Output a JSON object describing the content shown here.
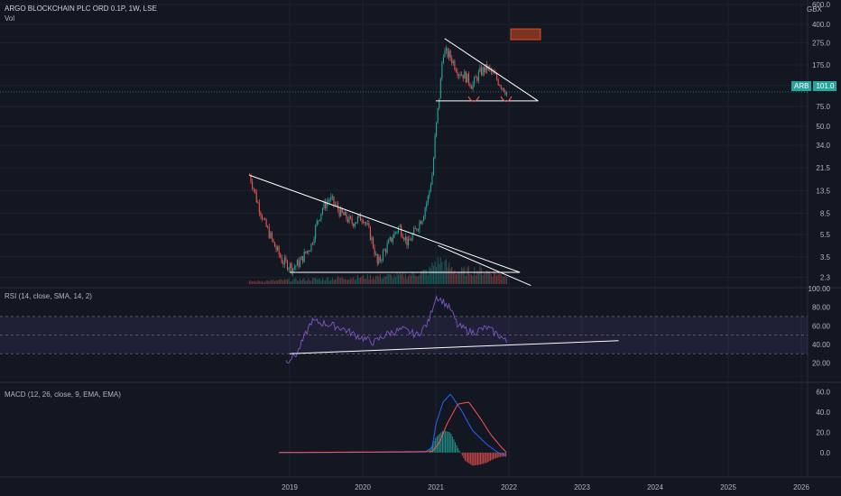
{
  "header": {
    "symbol_title": "ARGO BLOCKCHAIN PLC ORD 0.1P, 1W, LSE",
    "volume_label": "Vol",
    "currency_multiplier": "GBX"
  },
  "price_badge": {
    "ticker": "ARB",
    "value": "101.0"
  },
  "colors": {
    "background": "#131722",
    "up": "#26a69a",
    "down": "#ef5350",
    "rsi_line": "#7e57c2",
    "macd_line": "#2962ff",
    "signal_line": "#ff5252",
    "trendline": "#ffffff"
  },
  "chart_data": [
    {
      "type": "candlestick",
      "name": "price",
      "scale": "log",
      "y_ticks": [
        600.0,
        400.0,
        275.0,
        175.0,
        115.0,
        75.0,
        50.0,
        34.0,
        21.5,
        13.5,
        8.5,
        5.5,
        3.5,
        2.3
      ],
      "y_tick_labels": [
        "600.0",
        "400.0",
        "275.0",
        "175.0",
        "115.0",
        "75.0",
        "50.0",
        "34.0",
        "21.5",
        "13.5",
        "8.5",
        "5.5",
        "3.5",
        "2.3"
      ],
      "x_tick_labels": [
        "2019",
        "2020",
        "2021",
        "2022",
        "2023",
        "2024",
        "2025",
        "2026"
      ],
      "x_ticks": [
        2019,
        2020,
        2021,
        2022,
        2023,
        2024,
        2025,
        2026
      ],
      "x_range": [
        2018.0,
        2026.0
      ],
      "y_range": [
        1.9,
        600
      ],
      "path": [
        [
          2018.45,
          18.5
        ],
        [
          2018.55,
          11.0
        ],
        [
          2018.65,
          7.0
        ],
        [
          2018.78,
          4.5
        ],
        [
          2018.9,
          3.2
        ],
        [
          2019.05,
          2.8
        ],
        [
          2019.15,
          3.2
        ],
        [
          2019.3,
          4.5
        ],
        [
          2019.45,
          9.5
        ],
        [
          2019.55,
          11.5
        ],
        [
          2019.7,
          8.5
        ],
        [
          2019.85,
          7.0
        ],
        [
          2020.0,
          8.0
        ],
        [
          2020.12,
          5.0
        ],
        [
          2020.2,
          3.0
        ],
        [
          2020.35,
          4.5
        ],
        [
          2020.5,
          6.5
        ],
        [
          2020.62,
          4.5
        ],
        [
          2020.72,
          6.0
        ],
        [
          2020.82,
          8.0
        ],
        [
          2020.9,
          12.0
        ],
        [
          2020.96,
          20.0
        ],
        [
          2021.02,
          60.0
        ],
        [
          2021.06,
          110.0
        ],
        [
          2021.1,
          230.0
        ],
        [
          2021.18,
          215.0
        ],
        [
          2021.3,
          155.0
        ],
        [
          2021.4,
          140.0
        ],
        [
          2021.5,
          115.0
        ],
        [
          2021.6,
          150.0
        ],
        [
          2021.7,
          165.0
        ],
        [
          2021.8,
          140.0
        ],
        [
          2021.88,
          120.0
        ],
        [
          2021.97,
          101.0
        ]
      ],
      "volume_path": [
        [
          2018.45,
          0.1
        ],
        [
          2018.9,
          0.15
        ],
        [
          2019.4,
          0.2
        ],
        [
          2019.8,
          0.25
        ],
        [
          2020.2,
          0.3
        ],
        [
          2020.6,
          0.35
        ],
        [
          2020.9,
          0.5
        ],
        [
          2021.03,
          1.0
        ],
        [
          2021.1,
          0.8
        ],
        [
          2021.3,
          0.5
        ],
        [
          2021.6,
          0.55
        ],
        [
          2021.97,
          0.35
        ]
      ],
      "trendlines": [
        {
          "from": [
            2018.45,
            18.5
          ],
          "to": [
            2022.15,
            2.55
          ]
        },
        {
          "from": [
            2019.0,
            2.55
          ],
          "to": [
            2022.15,
            2.55
          ]
        },
        {
          "from": [
            2021.03,
            4.4
          ],
          "to": [
            2022.3,
            1.95
          ]
        },
        {
          "from": [
            2021.12,
            300.0
          ],
          "to": [
            2022.4,
            84.0
          ]
        },
        {
          "from": [
            2021.0,
            84.0
          ],
          "to": [
            2022.4,
            84.0
          ]
        }
      ],
      "last_price": 101.0
    },
    {
      "type": "line",
      "name": "RSI",
      "title": "RSI (14, close, SMA, 14, 2)",
      "y_ticks": [
        100.0,
        80.0,
        60.0,
        40.0,
        20.0
      ],
      "y_tick_labels": [
        "100.00",
        "80.00",
        "60.00",
        "40.00",
        "20.00"
      ],
      "y_range": [
        5,
        100
      ],
      "band": [
        30,
        70
      ],
      "midline": 50,
      "path": [
        [
          2018.95,
          22
        ],
        [
          2019.1,
          30
        ],
        [
          2019.3,
          65
        ],
        [
          2019.5,
          62
        ],
        [
          2019.7,
          58
        ],
        [
          2019.9,
          50
        ],
        [
          2020.15,
          42
        ],
        [
          2020.35,
          52
        ],
        [
          2020.55,
          56
        ],
        [
          2020.75,
          50
        ],
        [
          2020.9,
          64
        ],
        [
          2021.0,
          92
        ],
        [
          2021.1,
          86
        ],
        [
          2021.2,
          78
        ],
        [
          2021.3,
          60
        ],
        [
          2021.5,
          53
        ],
        [
          2021.7,
          58
        ],
        [
          2021.9,
          48
        ],
        [
          2021.97,
          42
        ]
      ],
      "trendline": {
        "from": [
          2019.0,
          30
        ],
        "to": [
          2023.5,
          44
        ]
      }
    },
    {
      "type": "line",
      "name": "MACD",
      "title": "MACD (12, 26, close, 9, EMA, EMA)",
      "y_ticks": [
        60.0,
        40.0,
        20.0,
        0.0
      ],
      "y_tick_labels": [
        "60.0",
        "40.0",
        "20.0",
        "0.0"
      ],
      "y_range": [
        -18,
        66
      ],
      "macd_path": [
        [
          2018.85,
          0
        ],
        [
          2020.85,
          0.5
        ],
        [
          2020.95,
          5
        ],
        [
          2021.0,
          28
        ],
        [
          2021.1,
          50
        ],
        [
          2021.2,
          58
        ],
        [
          2021.35,
          42
        ],
        [
          2021.5,
          22
        ],
        [
          2021.7,
          8
        ],
        [
          2021.85,
          0
        ],
        [
          2021.97,
          -3
        ]
      ],
      "signal_path": [
        [
          2018.85,
          0
        ],
        [
          2020.95,
          1
        ],
        [
          2021.05,
          10
        ],
        [
          2021.15,
          28
        ],
        [
          2021.3,
          48
        ],
        [
          2021.45,
          50
        ],
        [
          2021.6,
          35
        ],
        [
          2021.75,
          18
        ],
        [
          2021.9,
          5
        ],
        [
          2021.97,
          0
        ]
      ],
      "histogram_path": [
        [
          2020.9,
          0
        ],
        [
          2021.0,
          15
        ],
        [
          2021.1,
          22
        ],
        [
          2021.2,
          20
        ],
        [
          2021.3,
          5
        ],
        [
          2021.4,
          -8
        ],
        [
          2021.5,
          -13
        ],
        [
          2021.6,
          -12
        ],
        [
          2021.7,
          -10
        ],
        [
          2021.8,
          -6
        ],
        [
          2021.9,
          -4
        ],
        [
          2021.97,
          -4
        ]
      ]
    }
  ]
}
